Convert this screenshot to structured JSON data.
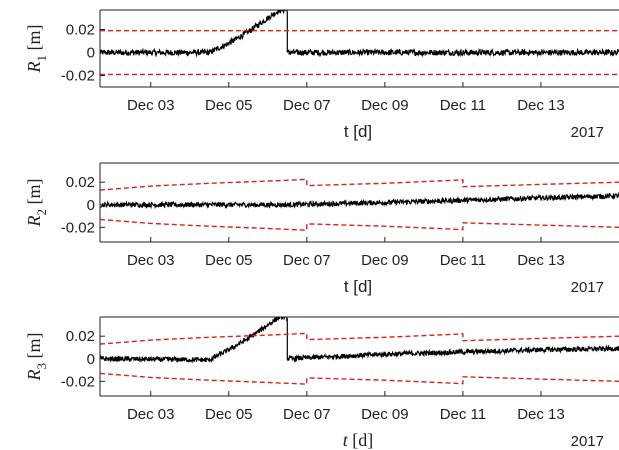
{
  "chart_data": [
    {
      "type": "line",
      "ylabel_var": "R",
      "ylabel_sub": "1",
      "ylabel_unit": " [m]",
      "xlabel": "t [d]",
      "xlabel_style": "normal",
      "year": "2017",
      "x_ticks": [
        "Dec 03",
        "Dec 05",
        "Dec 07",
        "Dec 09",
        "Dec 11",
        "Dec 13"
      ],
      "x_tick_days": [
        3,
        5,
        7,
        9,
        11,
        13
      ],
      "x_range_days": [
        1.7,
        15.0
      ],
      "y_ticks": [
        0.02,
        0,
        -0.02
      ],
      "y_tick_labels": [
        "0.02",
        "0",
        "-0.02"
      ],
      "ylim": [
        -0.03,
        0.037
      ],
      "series": [
        {
          "color": "#000000",
          "style": "solid",
          "x_days": [
            1.7,
            4.5,
            5.0,
            5.5,
            6.0,
            6.3,
            6.5,
            6.5,
            15.0
          ],
          "y": [
            0.0,
            0.0,
            0.008,
            0.018,
            0.03,
            0.037,
            0.037,
            0.0,
            0.0
          ],
          "noise": 0.0025
        },
        {
          "color": "#e02020",
          "style": "dashed",
          "x_days": [
            1.7,
            15.0
          ],
          "y": [
            0.019,
            0.019
          ]
        },
        {
          "color": "#e02020",
          "style": "dashed",
          "x_days": [
            1.7,
            15.0
          ],
          "y": [
            -0.019,
            -0.019
          ]
        }
      ]
    },
    {
      "type": "line",
      "ylabel_var": "R",
      "ylabel_sub": "2",
      "ylabel_unit": " [m]",
      "xlabel": "t [d]",
      "xlabel_style": "normal",
      "year": "2017",
      "x_ticks": [
        "Dec 03",
        "Dec 05",
        "Dec 07",
        "Dec 09",
        "Dec 11",
        "Dec 13"
      ],
      "x_tick_days": [
        3,
        5,
        7,
        9,
        11,
        13
      ],
      "x_range_days": [
        1.7,
        15.0
      ],
      "y_ticks": [
        0.02,
        0,
        -0.02
      ],
      "y_tick_labels": [
        "0.02",
        "0",
        "-0.02"
      ],
      "ylim": [
        -0.033,
        0.037
      ],
      "series": [
        {
          "color": "#000000",
          "style": "solid",
          "x_days": [
            1.7,
            4.0,
            6.5,
            9.0,
            11.0,
            13.0,
            15.0
          ],
          "y": [
            0.0,
            0.0,
            0.0,
            0.002,
            0.004,
            0.006,
            0.008
          ],
          "noise": 0.0022
        },
        {
          "color": "#e02020",
          "style": "dashed",
          "x_days": [
            1.7,
            3.0,
            4.5,
            6.0,
            7.0,
            7.0,
            9.0,
            11.0,
            11.0,
            13.0,
            15.0
          ],
          "y": [
            0.013,
            0.0165,
            0.019,
            0.021,
            0.0225,
            0.017,
            0.019,
            0.022,
            0.016,
            0.018,
            0.02
          ]
        },
        {
          "color": "#e02020",
          "style": "dashed",
          "x_days": [
            1.7,
            3.0,
            4.5,
            6.0,
            7.0,
            7.0,
            9.0,
            11.0,
            11.0,
            13.0,
            15.0
          ],
          "y": [
            -0.013,
            -0.0165,
            -0.019,
            -0.021,
            -0.0225,
            -0.017,
            -0.019,
            -0.022,
            -0.016,
            -0.018,
            -0.02
          ]
        }
      ]
    },
    {
      "type": "line",
      "ylabel_var": "R",
      "ylabel_sub": "3",
      "ylabel_unit": " [m]",
      "xlabel": "t [d]",
      "xlabel_style": "italic",
      "year": "2017",
      "x_ticks": [
        "Dec 03",
        "Dec 05",
        "Dec 07",
        "Dec 09",
        "Dec 11",
        "Dec 13"
      ],
      "x_tick_days": [
        3,
        5,
        7,
        9,
        11,
        13
      ],
      "x_range_days": [
        1.7,
        15.0
      ],
      "y_ticks": [
        0.02,
        0,
        -0.02
      ],
      "y_tick_labels": [
        "0.02",
        "0",
        "-0.02"
      ],
      "ylim": [
        -0.033,
        0.037
      ],
      "series": [
        {
          "color": "#000000",
          "style": "solid",
          "x_days": [
            1.7,
            4.5,
            5.0,
            5.5,
            6.0,
            6.3,
            6.5,
            6.5,
            9.0,
            11.0,
            13.0,
            15.0
          ],
          "y": [
            0.0,
            -0.001,
            0.008,
            0.018,
            0.03,
            0.037,
            0.037,
            0.0,
            0.004,
            0.006,
            0.008,
            0.009
          ],
          "noise": 0.0022
        },
        {
          "color": "#e02020",
          "style": "dashed",
          "x_days": [
            1.7,
            3.0,
            4.5,
            6.0,
            7.0,
            7.0,
            9.0,
            11.0,
            11.0,
            13.0,
            15.0
          ],
          "y": [
            0.013,
            0.0165,
            0.019,
            0.021,
            0.0225,
            0.017,
            0.019,
            0.022,
            0.016,
            0.018,
            0.02
          ]
        },
        {
          "color": "#e02020",
          "style": "dashed",
          "x_days": [
            1.7,
            3.0,
            4.5,
            6.0,
            7.0,
            7.0,
            9.0,
            11.0,
            11.0,
            13.0,
            15.0
          ],
          "y": [
            -0.013,
            -0.0165,
            -0.019,
            -0.021,
            -0.0225,
            -0.017,
            -0.019,
            -0.022,
            -0.016,
            -0.018,
            -0.02
          ]
        }
      ]
    }
  ]
}
